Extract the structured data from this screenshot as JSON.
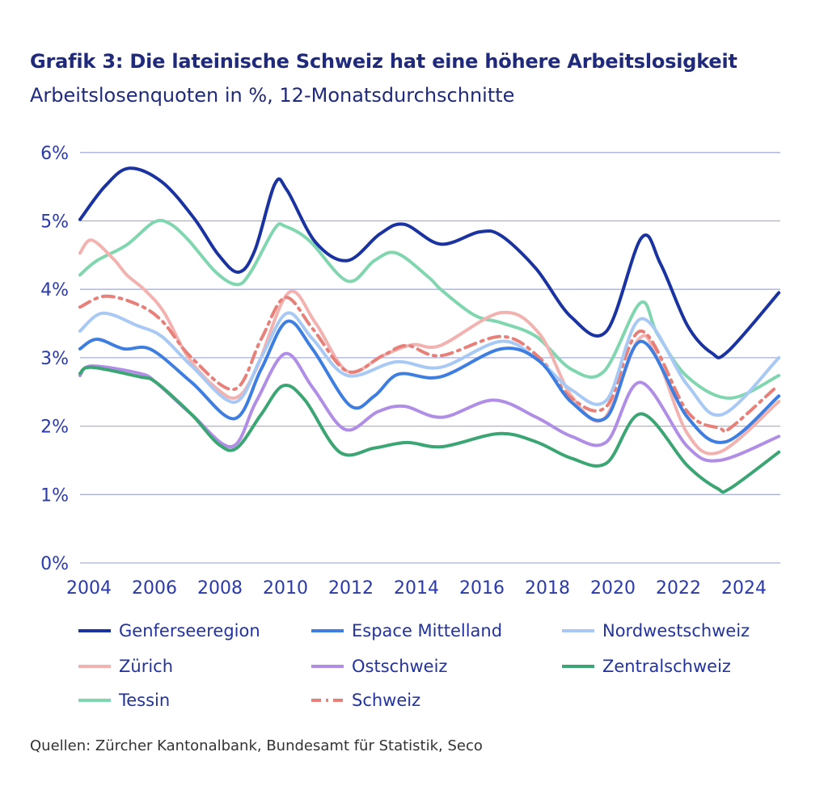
{
  "title": "Grafik 3: Die lateinische Schweiz hat eine höhere Arbeitslosigkeit",
  "subtitle": "Arbeitslosenquoten in %, 12-Monatsdurchschnitte",
  "source": "Quellen: Zürcher Kantonalbank, Bundesamt für Statistik, Seco",
  "chart_data": {
    "type": "line",
    "title": "Grafik 3: Die lateinische Schweiz hat eine höhere Arbeitslosigkeit",
    "subtitle": "Arbeitslosenquoten in %, 12-Monatsdurchschnitte",
    "xlim": [
      2003.85,
      2025.25
    ],
    "ylim": [
      0,
      6
    ],
    "x_ticks": [
      "2004",
      "2006",
      "2008",
      "2010",
      "2012",
      "2014",
      "2016",
      "2018",
      "2020",
      "2022",
      "2024"
    ],
    "y_ticks": [
      "0%",
      "1%",
      "2%",
      "3%",
      "4%",
      "5%",
      "6%"
    ],
    "grid": "horizontal",
    "legend_position": "bottom",
    "series": [
      {
        "name": "Genferseeregion",
        "color": "#1a33a0",
        "dash": "solid",
        "points": [
          [
            2003.85,
            5.02
          ],
          [
            2004.62,
            5.51
          ],
          [
            2005.36,
            5.77
          ],
          [
            2006.35,
            5.57
          ],
          [
            2007.33,
            5.04
          ],
          [
            2008.07,
            4.51
          ],
          [
            2008.69,
            4.25
          ],
          [
            2009.19,
            4.57
          ],
          [
            2009.8,
            5.54
          ],
          [
            2010.17,
            5.45
          ],
          [
            2011.04,
            4.69
          ],
          [
            2012.02,
            4.42
          ],
          [
            2013.01,
            4.81
          ],
          [
            2013.75,
            4.95
          ],
          [
            2014.86,
            4.66
          ],
          [
            2016.05,
            4.84
          ],
          [
            2016.72,
            4.78
          ],
          [
            2017.78,
            4.3
          ],
          [
            2018.86,
            3.59
          ],
          [
            2019.93,
            3.39
          ],
          [
            2020.99,
            4.75
          ],
          [
            2021.58,
            4.37
          ],
          [
            2022.4,
            3.47
          ],
          [
            2023.14,
            3.07
          ],
          [
            2023.63,
            3.09
          ],
          [
            2025.19,
            3.95
          ]
        ]
      },
      {
        "name": "Espace Mittelland",
        "color": "#3d7ee0",
        "dash": "solid",
        "points": [
          [
            2003.85,
            3.13
          ],
          [
            2004.37,
            3.27
          ],
          [
            2005.19,
            3.13
          ],
          [
            2006.02,
            3.12
          ],
          [
            2007.26,
            2.64
          ],
          [
            2008.57,
            2.11
          ],
          [
            2009.38,
            2.83
          ],
          [
            2010.17,
            3.53
          ],
          [
            2010.96,
            3.12
          ],
          [
            2012.1,
            2.3
          ],
          [
            2012.84,
            2.44
          ],
          [
            2013.58,
            2.76
          ],
          [
            2014.86,
            2.72
          ],
          [
            2016.72,
            3.13
          ],
          [
            2017.88,
            2.95
          ],
          [
            2018.86,
            2.35
          ],
          [
            2019.93,
            2.13
          ],
          [
            2020.99,
            3.24
          ],
          [
            2022.4,
            2.13
          ],
          [
            2023.56,
            1.77
          ],
          [
            2025.19,
            2.44
          ]
        ]
      },
      {
        "name": "Nordwestschweiz",
        "color": "#a8c9f4",
        "dash": "solid",
        "points": [
          [
            2003.85,
            3.39
          ],
          [
            2004.54,
            3.65
          ],
          [
            2005.6,
            3.47
          ],
          [
            2006.35,
            3.31
          ],
          [
            2007.26,
            2.88
          ],
          [
            2008.57,
            2.35
          ],
          [
            2009.38,
            3.0
          ],
          [
            2010.17,
            3.65
          ],
          [
            2010.96,
            3.27
          ],
          [
            2012.02,
            2.74
          ],
          [
            2013.51,
            2.94
          ],
          [
            2014.86,
            2.86
          ],
          [
            2016.72,
            3.24
          ],
          [
            2017.88,
            2.95
          ],
          [
            2018.86,
            2.53
          ],
          [
            2019.93,
            2.38
          ],
          [
            2020.99,
            3.57
          ],
          [
            2022.4,
            2.6
          ],
          [
            2023.46,
            2.17
          ],
          [
            2025.19,
            3.0
          ]
        ]
      },
      {
        "name": "Zürich",
        "color": "#f2b3b0",
        "dash": "solid",
        "points": [
          [
            2003.85,
            4.53
          ],
          [
            2004.2,
            4.72
          ],
          [
            2004.86,
            4.45
          ],
          [
            2005.28,
            4.21
          ],
          [
            2005.85,
            3.98
          ],
          [
            2006.42,
            3.66
          ],
          [
            2007.16,
            3.0
          ],
          [
            2008.0,
            2.56
          ],
          [
            2008.64,
            2.42
          ],
          [
            2009.23,
            2.83
          ],
          [
            2010.22,
            3.95
          ],
          [
            2011.04,
            3.51
          ],
          [
            2012.02,
            2.8
          ],
          [
            2013.09,
            3.03
          ],
          [
            2014.0,
            3.19
          ],
          [
            2014.86,
            3.18
          ],
          [
            2016.72,
            3.66
          ],
          [
            2017.88,
            3.35
          ],
          [
            2018.86,
            2.44
          ],
          [
            2019.85,
            2.11
          ],
          [
            2020.91,
            3.27
          ],
          [
            2021.48,
            3.0
          ],
          [
            2022.4,
            1.89
          ],
          [
            2023.38,
            1.62
          ],
          [
            2025.19,
            2.36
          ]
        ]
      },
      {
        "name": "Ostschweiz",
        "color": "#b08ee6",
        "dash": "solid",
        "points": [
          [
            2003.85,
            2.74
          ],
          [
            2004.2,
            2.88
          ],
          [
            2005.68,
            2.77
          ],
          [
            2006.17,
            2.64
          ],
          [
            2007.26,
            2.17
          ],
          [
            2008.49,
            1.7
          ],
          [
            2009.23,
            2.36
          ],
          [
            2010.12,
            3.06
          ],
          [
            2010.96,
            2.56
          ],
          [
            2011.95,
            1.95
          ],
          [
            2012.94,
            2.21
          ],
          [
            2013.75,
            2.29
          ],
          [
            2014.91,
            2.13
          ],
          [
            2016.47,
            2.38
          ],
          [
            2017.78,
            2.13
          ],
          [
            2018.86,
            1.85
          ],
          [
            2019.93,
            1.77
          ],
          [
            2020.96,
            2.64
          ],
          [
            2022.4,
            1.7
          ],
          [
            2023.38,
            1.5
          ],
          [
            2025.19,
            1.85
          ]
        ]
      },
      {
        "name": "Zentralschweiz",
        "color": "#3ba573",
        "dash": "solid",
        "points": [
          [
            2003.85,
            2.77
          ],
          [
            2004.2,
            2.86
          ],
          [
            2005.68,
            2.72
          ],
          [
            2006.17,
            2.64
          ],
          [
            2007.26,
            2.17
          ],
          [
            2008.07,
            1.74
          ],
          [
            2008.64,
            1.68
          ],
          [
            2009.38,
            2.17
          ],
          [
            2010.05,
            2.59
          ],
          [
            2010.72,
            2.38
          ],
          [
            2011.78,
            1.62
          ],
          [
            2012.84,
            1.68
          ],
          [
            2013.83,
            1.76
          ],
          [
            2014.91,
            1.7
          ],
          [
            2016.64,
            1.89
          ],
          [
            2017.78,
            1.77
          ],
          [
            2018.86,
            1.53
          ],
          [
            2019.93,
            1.46
          ],
          [
            2020.99,
            2.18
          ],
          [
            2022.4,
            1.42
          ],
          [
            2023.31,
            1.09
          ],
          [
            2023.7,
            1.09
          ],
          [
            2025.19,
            1.62
          ]
        ]
      },
      {
        "name": "Tessin",
        "color": "#80d6ae",
        "dash": "solid",
        "points": [
          [
            2003.85,
            4.21
          ],
          [
            2004.37,
            4.42
          ],
          [
            2005.28,
            4.65
          ],
          [
            2006.1,
            4.98
          ],
          [
            2006.59,
            4.96
          ],
          [
            2007.16,
            4.72
          ],
          [
            2008.0,
            4.25
          ],
          [
            2008.64,
            4.07
          ],
          [
            2009.06,
            4.25
          ],
          [
            2009.8,
            4.89
          ],
          [
            2010.12,
            4.92
          ],
          [
            2010.86,
            4.71
          ],
          [
            2012.02,
            4.12
          ],
          [
            2012.84,
            4.42
          ],
          [
            2013.51,
            4.53
          ],
          [
            2014.49,
            4.18
          ],
          [
            2014.91,
            3.98
          ],
          [
            2015.9,
            3.62
          ],
          [
            2016.72,
            3.51
          ],
          [
            2017.78,
            3.31
          ],
          [
            2018.86,
            2.83
          ],
          [
            2019.85,
            2.8
          ],
          [
            2020.96,
            3.8
          ],
          [
            2021.48,
            3.35
          ],
          [
            2022.4,
            2.72
          ],
          [
            2023.7,
            2.41
          ],
          [
            2025.19,
            2.74
          ]
        ]
      },
      {
        "name": "Schweiz",
        "color": "#e8807a",
        "dash": "dashdot",
        "points": [
          [
            2003.85,
            3.74
          ],
          [
            2004.62,
            3.9
          ],
          [
            2005.6,
            3.78
          ],
          [
            2006.35,
            3.54
          ],
          [
            2007.26,
            3.0
          ],
          [
            2008.57,
            2.54
          ],
          [
            2009.38,
            3.27
          ],
          [
            2010.12,
            3.88
          ],
          [
            2010.96,
            3.42
          ],
          [
            2012.02,
            2.8
          ],
          [
            2013.09,
            3.03
          ],
          [
            2013.83,
            3.18
          ],
          [
            2014.86,
            3.03
          ],
          [
            2016.72,
            3.31
          ],
          [
            2017.88,
            3.0
          ],
          [
            2018.86,
            2.41
          ],
          [
            2019.93,
            2.29
          ],
          [
            2020.99,
            3.39
          ],
          [
            2022.4,
            2.21
          ],
          [
            2023.38,
            1.97
          ],
          [
            2023.7,
            1.97
          ],
          [
            2025.04,
            2.54
          ]
        ]
      }
    ]
  }
}
